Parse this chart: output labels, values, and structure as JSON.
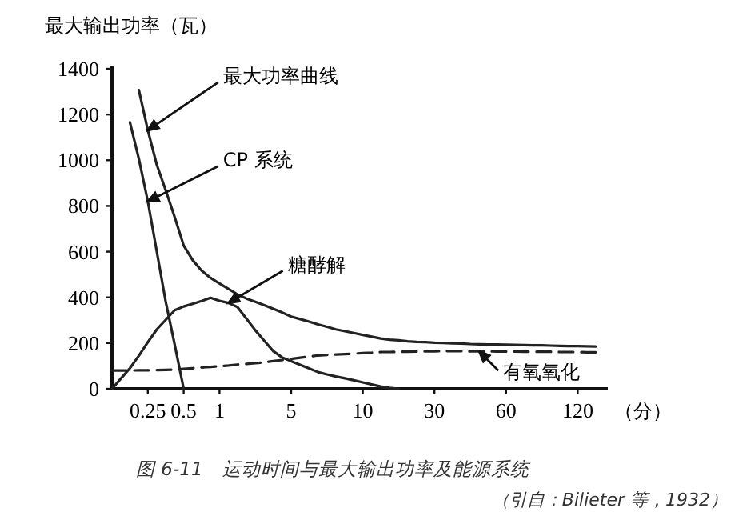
{
  "chart_data": {
    "type": "line",
    "title": "图 6-11　运动时间与最大输出功率及能源系统",
    "xlabel": "（分）",
    "ylabel": "最大输出功率（瓦）",
    "categories": [
      null,
      null,
      null,
      null,
      "0.25",
      null,
      null,
      null,
      "0.5",
      null,
      null,
      null,
      "1",
      null,
      null,
      null,
      null,
      null,
      null,
      null,
      "5",
      null,
      null,
      null,
      null,
      null,
      null,
      null,
      "10",
      null,
      null,
      null,
      null,
      null,
      null,
      null,
      "30",
      null,
      null,
      null,
      null,
      null,
      null,
      null,
      "60",
      null,
      null,
      null,
      null,
      null,
      null,
      null,
      "120",
      null,
      null,
      null
    ],
    "ylim": [
      0,
      1400
    ],
    "yticks": [
      0,
      200,
      400,
      600,
      800,
      1000,
      1200,
      1400
    ],
    "series": [
      {
        "color": "#222222",
        "line_style": "solid",
        "values": [
          null,
          null,
          null,
          1307,
          1131,
          980,
          868,
          751,
          627,
          563,
          517,
          485,
          461,
          437,
          413,
          395,
          381,
          366,
          350,
          334,
          316,
          305,
          294,
          282,
          271,
          260,
          252,
          244,
          236,
          228,
          220,
          215,
          212,
          208,
          205,
          204,
          202,
          201,
          199,
          198,
          196,
          195,
          194,
          194,
          193,
          192,
          191,
          190,
          190,
          189,
          188,
          187,
          187,
          186,
          185,
          null
        ]
      },
      {
        "color": "#222222",
        "line_style": "solid",
        "values": [
          null,
          null,
          1166,
          1006,
          820,
          600,
          380,
          193,
          0,
          null,
          null,
          null,
          null,
          null,
          null,
          null,
          null,
          null,
          null,
          null,
          null,
          null,
          null,
          null,
          null,
          null,
          null,
          null,
          null,
          null,
          null,
          null,
          null,
          null,
          null,
          null,
          null,
          null,
          null,
          null,
          null,
          null,
          null,
          null,
          null,
          null,
          null,
          null,
          null,
          null,
          null,
          null,
          null,
          null,
          null,
          null
        ]
      },
      {
        "color": "#222222",
        "line_style": "solid",
        "values": [
          0,
          45,
          90,
          145,
          204,
          260,
          302,
          344,
          360,
          372,
          384,
          398,
          385,
          376,
          358,
          307,
          256,
          210,
          165,
          137,
          121,
          105,
          89,
          73,
          63,
          54,
          46,
          37,
          28,
          19,
          10,
          4,
          0,
          null,
          null,
          null,
          null,
          null,
          null,
          null,
          null,
          null,
          null,
          null,
          null,
          null,
          null,
          null,
          null,
          null,
          null,
          null,
          null,
          null,
          null,
          null
        ]
      },
      {
        "color": "#222222",
        "line_style": "dashed",
        "values": [
          80,
          80,
          80,
          81,
          81,
          82,
          83,
          84,
          87,
          90,
          93,
          96,
          99,
          102,
          106,
          109,
          112,
          116,
          121,
          126,
          131,
          136,
          141,
          146,
          148,
          150,
          152,
          154,
          156,
          158,
          161,
          161,
          162,
          162,
          163,
          164,
          164,
          165,
          165,
          165,
          164,
          164,
          164,
          163,
          163,
          163,
          162,
          162,
          162,
          162,
          161,
          161,
          161,
          160,
          160,
          null
        ]
      }
    ],
    "annotations": [
      "最大功率曲线",
      "CP 系统",
      "糖酵解",
      "有氧氧化",
      "（引自：Bilieter 等，1932）"
    ]
  }
}
